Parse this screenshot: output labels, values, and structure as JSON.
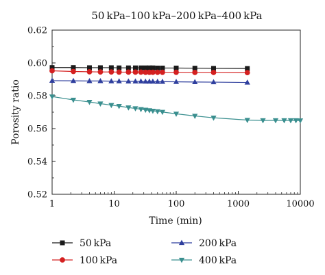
{
  "chart_data": {
    "type": "line",
    "title": "50 kPa–100 kPa–200 kPa–400 kPa",
    "xlabel": "Time (min)",
    "ylabel": "Porosity ratio",
    "xscale": "log",
    "xlim": [
      1,
      10000
    ],
    "ylim": [
      0.52,
      0.62
    ],
    "xticks": [
      1,
      10,
      100,
      1000,
      10000
    ],
    "xtick_labels": [
      "1",
      "10",
      "100",
      "1000",
      "10000"
    ],
    "yticks": [
      0.52,
      0.54,
      0.56,
      0.58,
      0.6,
      0.62
    ],
    "ytick_labels": [
      "0.52",
      "0.54",
      "0.56",
      "0.58",
      "0.60",
      "0.62"
    ],
    "legend_position": "bottom",
    "series": [
      {
        "name": "50 kPa",
        "color": "#1a1a1a",
        "marker": "square",
        "x": [
          1,
          2.2,
          4,
          6,
          9,
          12,
          17,
          22,
          27,
          32,
          37,
          42,
          50,
          60,
          100,
          200,
          400,
          1400
        ],
        "y": [
          0.5972,
          0.5972,
          0.5971,
          0.5971,
          0.5971,
          0.597,
          0.597,
          0.597,
          0.597,
          0.597,
          0.597,
          0.597,
          0.5969,
          0.5969,
          0.5969,
          0.5968,
          0.5967,
          0.5966
        ]
      },
      {
        "name": "100 kPa",
        "color": "#d42020",
        "marker": "circle",
        "x": [
          1,
          2.2,
          4,
          6,
          9,
          12,
          17,
          22,
          27,
          32,
          37,
          42,
          50,
          60,
          100,
          200,
          400,
          1400
        ],
        "y": [
          0.5952,
          0.5948,
          0.5946,
          0.5945,
          0.5945,
          0.5944,
          0.5944,
          0.5944,
          0.5944,
          0.5943,
          0.5943,
          0.5943,
          0.5943,
          0.5943,
          0.5943,
          0.5942,
          0.5942,
          0.5941
        ]
      },
      {
        "name": "200 kPa",
        "color": "#2f3f9e",
        "marker": "triangle-up",
        "x": [
          1,
          2.2,
          4,
          6,
          9,
          12,
          17,
          22,
          27,
          32,
          37,
          42,
          50,
          60,
          100,
          200,
          400,
          1400
        ],
        "y": [
          0.5892,
          0.5891,
          0.589,
          0.589,
          0.5889,
          0.5889,
          0.5888,
          0.5888,
          0.5888,
          0.5887,
          0.5887,
          0.5887,
          0.5886,
          0.5886,
          0.5885,
          0.5884,
          0.5883,
          0.5881
        ]
      },
      {
        "name": "400 kPa",
        "color": "#3a8f8f",
        "marker": "triangle-down",
        "x": [
          1,
          2.2,
          4,
          6,
          9,
          12,
          17,
          22,
          27,
          32,
          37,
          42,
          50,
          60,
          100,
          200,
          400,
          1400,
          2500,
          4000,
          5500,
          7000,
          8500,
          10000
        ],
        "y": [
          0.5795,
          0.5775,
          0.5762,
          0.5752,
          0.5743,
          0.5737,
          0.5728,
          0.5723,
          0.5718,
          0.5714,
          0.5711,
          0.5708,
          0.5705,
          0.5701,
          0.569,
          0.5677,
          0.5666,
          0.5652,
          0.565,
          0.565,
          0.565,
          0.565,
          0.565,
          0.5649
        ]
      }
    ]
  }
}
